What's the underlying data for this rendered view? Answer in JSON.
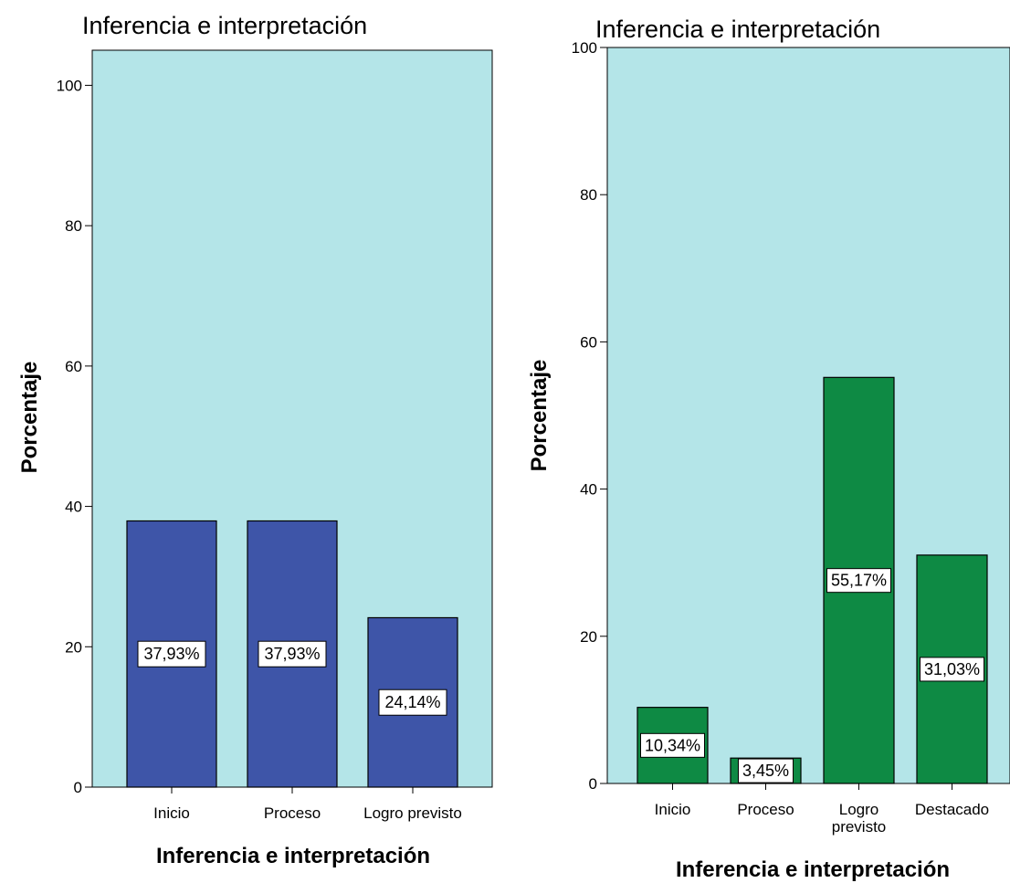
{
  "chart_data": [
    {
      "type": "bar",
      "title": "Inferencia e interpretación",
      "xlabel": "Inferencia e interpretación",
      "ylabel": "Porcentaje",
      "categories": [
        "Inicio",
        "Proceso",
        "Logro previsto"
      ],
      "values": [
        37.93,
        37.93,
        24.14
      ],
      "data_labels": [
        "37,93%",
        "37,93%",
        "24,14%"
      ],
      "yticks": [
        "0",
        "20",
        "40",
        "60",
        "80",
        "100"
      ],
      "ylim": [
        0,
        105
      ],
      "bar_color": "#3e55a8",
      "plot_bg": "#b4e5e8",
      "grid": false
    },
    {
      "type": "bar",
      "title": "Inferencia e interpretación",
      "xlabel": "Inferencia e interpretación",
      "ylabel": "Porcentaje",
      "categories": [
        "Inicio",
        "Proceso",
        "Logro previsto",
        "Destacado"
      ],
      "values": [
        10.34,
        3.45,
        55.17,
        31.03
      ],
      "data_labels": [
        "10,34%",
        "3,45%",
        "55,17%",
        "31,03%"
      ],
      "yticks": [
        "0",
        "20",
        "40",
        "60",
        "80",
        "100"
      ],
      "ylim": [
        0,
        100
      ],
      "bar_color": "#0e8a44",
      "plot_bg": "#b4e5e8",
      "grid": false
    }
  ]
}
